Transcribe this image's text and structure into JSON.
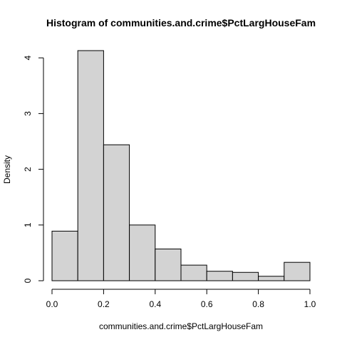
{
  "chart_data": {
    "type": "bar",
    "title": "Histogram of communities.and.crime$PctLargHouseFam",
    "xlabel": "communities.and.crime$PctLargHouseFam",
    "ylabel": "Density",
    "bins": [
      {
        "from": 0.0,
        "to": 0.1,
        "density": 0.89
      },
      {
        "from": 0.1,
        "to": 0.2,
        "density": 4.13
      },
      {
        "from": 0.2,
        "to": 0.3,
        "density": 2.44
      },
      {
        "from": 0.3,
        "to": 0.4,
        "density": 1.0
      },
      {
        "from": 0.4,
        "to": 0.5,
        "density": 0.57
      },
      {
        "from": 0.5,
        "to": 0.6,
        "density": 0.28
      },
      {
        "from": 0.6,
        "to": 0.7,
        "density": 0.17
      },
      {
        "from": 0.7,
        "to": 0.8,
        "density": 0.15
      },
      {
        "from": 0.8,
        "to": 0.9,
        "density": 0.08
      },
      {
        "from": 0.9,
        "to": 1.0,
        "density": 0.33
      }
    ],
    "xlim": [
      0,
      1
    ],
    "ylim": [
      0,
      4.2
    ],
    "x_ticks": [
      0.0,
      0.2,
      0.4,
      0.6,
      0.8,
      1.0
    ],
    "x_tick_labels": [
      "0.0",
      "0.2",
      "0.4",
      "0.6",
      "0.8",
      "1.0"
    ],
    "y_ticks": [
      0,
      1,
      2,
      3,
      4
    ],
    "y_tick_labels": [
      "0",
      "1",
      "2",
      "3",
      "4"
    ],
    "grid": false,
    "colors": {
      "bar_fill": "#d3d3d3",
      "bar_stroke": "#000000"
    }
  }
}
